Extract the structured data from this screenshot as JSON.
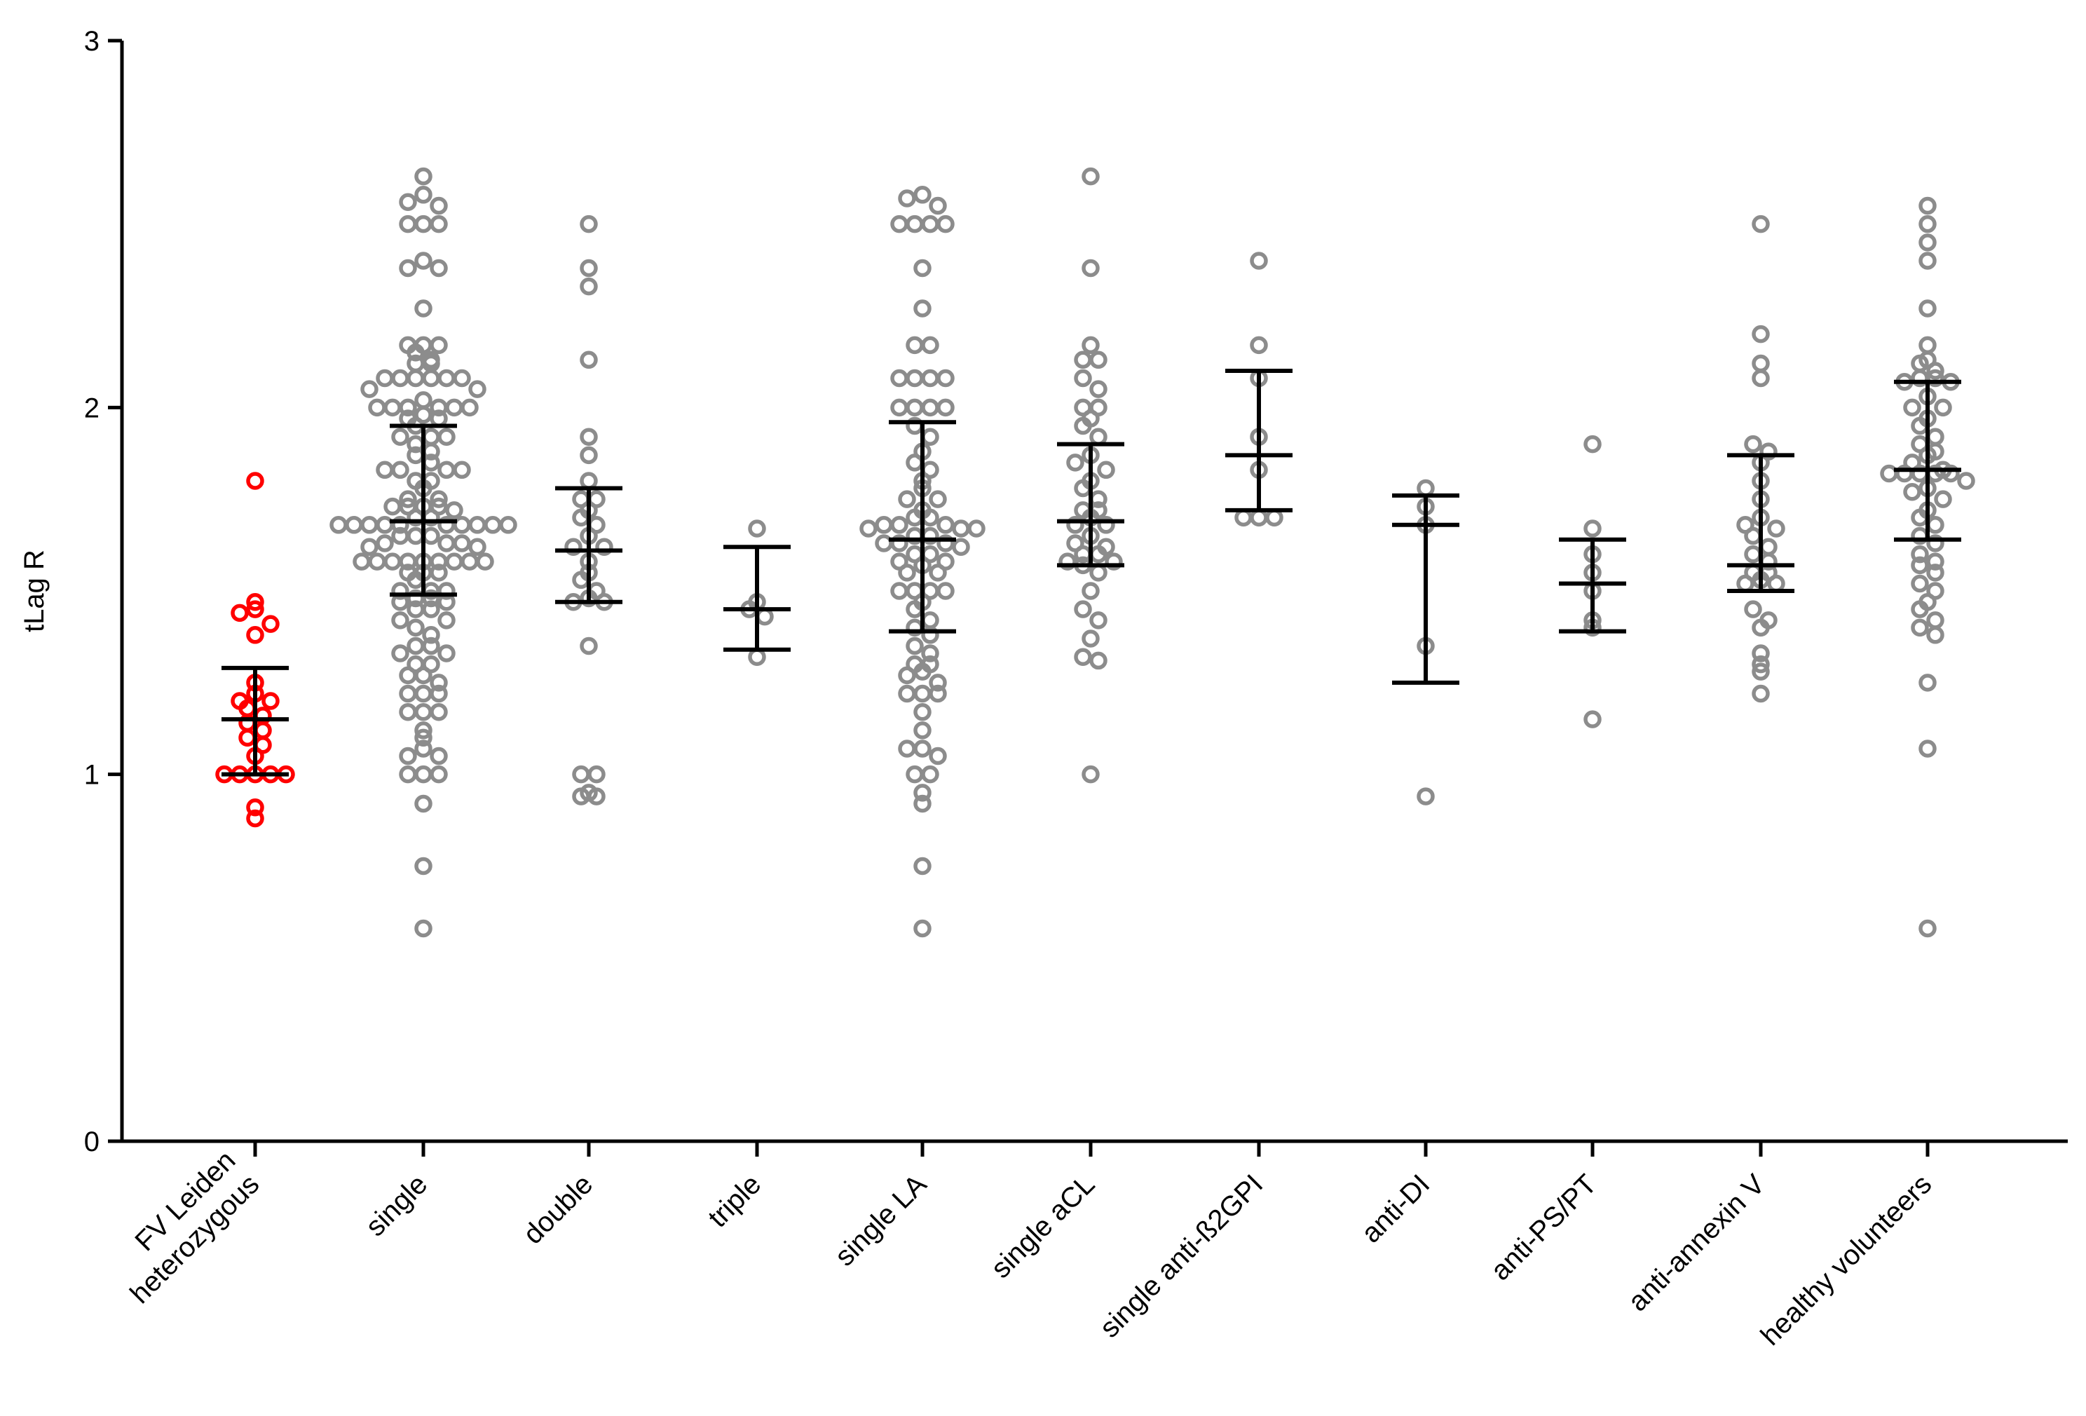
{
  "chart_data": {
    "type": "scatter",
    "subtype": "dot-plot-with-median-iqr",
    "title": "",
    "xlabel": "",
    "ylabel": "tLag R",
    "ylim": [
      0,
      3
    ],
    "yticks": [
      0,
      1,
      2,
      3
    ],
    "ytick_labels": [
      "0",
      "1",
      "2",
      "3"
    ],
    "grid": false,
    "colors": {
      "axis": "#000000",
      "highlight": "#ff0000",
      "default_points": "#8c8c8c",
      "summary": "#000000"
    },
    "categories": [
      {
        "label_lines": [
          "FV Leiden",
          "heterozygous"
        ],
        "color": "#ff0000",
        "median": 1.15,
        "q1": 1.0,
        "q3": 1.29,
        "values": [
          1.8,
          1.47,
          1.45,
          1.44,
          1.41,
          1.38,
          1.25,
          1.22,
          1.2,
          1.2,
          1.18,
          1.16,
          1.14,
          1.12,
          1.1,
          1.08,
          1.05,
          1.0,
          1.0,
          1.0,
          1.0,
          1.0,
          0.91,
          0.88
        ]
      },
      {
        "label_lines": [
          "single"
        ],
        "color": "#8c8c8c",
        "median": 1.69,
        "q1": 1.49,
        "q3": 1.95,
        "values": [
          2.63,
          2.58,
          2.56,
          2.55,
          2.5,
          2.5,
          2.5,
          2.4,
          2.38,
          2.38,
          2.27,
          2.17,
          2.17,
          2.17,
          2.15,
          2.13,
          2.12,
          2.12,
          2.08,
          2.08,
          2.08,
          2.08,
          2.08,
          2.08,
          2.05,
          2.05,
          2.02,
          2.0,
          2.0,
          2.0,
          2.0,
          2.0,
          2.0,
          1.98,
          1.97,
          1.97,
          1.95,
          1.92,
          1.92,
          1.92,
          1.9,
          1.88,
          1.87,
          1.85,
          1.83,
          1.83,
          1.83,
          1.83,
          1.8,
          1.8,
          1.78,
          1.75,
          1.75,
          1.73,
          1.73,
          1.73,
          1.73,
          1.72,
          1.7,
          1.7,
          1.68,
          1.68,
          1.68,
          1.68,
          1.68,
          1.68,
          1.68,
          1.68,
          1.68,
          1.68,
          1.65,
          1.65,
          1.65,
          1.63,
          1.63,
          1.63,
          1.62,
          1.62,
          1.58,
          1.58,
          1.58,
          1.58,
          1.58,
          1.58,
          1.58,
          1.58,
          1.58,
          1.55,
          1.55,
          1.55,
          1.53,
          1.5,
          1.5,
          1.5,
          1.48,
          1.48,
          1.47,
          1.47,
          1.45,
          1.45,
          1.42,
          1.42,
          1.4,
          1.38,
          1.35,
          1.35,
          1.33,
          1.33,
          1.3,
          1.3,
          1.27,
          1.27,
          1.25,
          1.22,
          1.22,
          1.22,
          1.17,
          1.17,
          1.17,
          1.12,
          1.1,
          1.07,
          1.05,
          1.05,
          1.0,
          1.0,
          1.0,
          0.92,
          0.75,
          0.58
        ]
      },
      {
        "label_lines": [
          "double"
        ],
        "color": "#8c8c8c",
        "median": 1.61,
        "q1": 1.47,
        "q3": 1.78,
        "values": [
          2.5,
          2.38,
          2.33,
          2.13,
          1.92,
          1.87,
          1.8,
          1.75,
          1.75,
          1.72,
          1.7,
          1.68,
          1.65,
          1.62,
          1.62,
          1.58,
          1.55,
          1.53,
          1.5,
          1.48,
          1.47,
          1.47,
          1.35,
          1.0,
          1.0,
          0.95,
          0.94,
          0.94
        ]
      },
      {
        "label_lines": [
          "triple"
        ],
        "color": "#8c8c8c",
        "median": 1.45,
        "q1": 1.34,
        "q3": 1.62,
        "values": [
          1.67,
          1.47,
          1.45,
          1.43,
          1.32
        ]
      },
      {
        "label_lines": [
          "single LA"
        ],
        "color": "#8c8c8c",
        "median": 1.64,
        "q1": 1.39,
        "q3": 1.96,
        "values": [
          2.58,
          2.57,
          2.55,
          2.5,
          2.5,
          2.5,
          2.5,
          2.38,
          2.27,
          2.17,
          2.17,
          2.08,
          2.08,
          2.08,
          2.08,
          2.0,
          2.0,
          2.0,
          2.0,
          1.95,
          1.92,
          1.88,
          1.85,
          1.83,
          1.8,
          1.78,
          1.75,
          1.75,
          1.72,
          1.7,
          1.7,
          1.68,
          1.68,
          1.68,
          1.67,
          1.67,
          1.67,
          1.65,
          1.65,
          1.63,
          1.63,
          1.63,
          1.62,
          1.6,
          1.6,
          1.58,
          1.58,
          1.57,
          1.55,
          1.55,
          1.5,
          1.5,
          1.5,
          1.5,
          1.47,
          1.45,
          1.42,
          1.4,
          1.38,
          1.35,
          1.33,
          1.3,
          1.3,
          1.28,
          1.27,
          1.25,
          1.22,
          1.22,
          1.22,
          1.17,
          1.12,
          1.07,
          1.07,
          1.05,
          1.0,
          1.0,
          0.95,
          0.92,
          0.75,
          0.58
        ]
      },
      {
        "label_lines": [
          "single aCL"
        ],
        "color": "#8c8c8c",
        "median": 1.69,
        "q1": 1.57,
        "q3": 1.9,
        "values": [
          2.63,
          2.38,
          2.17,
          2.13,
          2.13,
          2.08,
          2.05,
          2.0,
          2.0,
          1.97,
          1.95,
          1.92,
          1.87,
          1.85,
          1.83,
          1.8,
          1.78,
          1.75,
          1.72,
          1.72,
          1.7,
          1.68,
          1.68,
          1.65,
          1.63,
          1.62,
          1.6,
          1.6,
          1.58,
          1.58,
          1.57,
          1.55,
          1.5,
          1.45,
          1.42,
          1.37,
          1.32,
          1.31,
          1.0
        ]
      },
      {
        "label_lines": [
          "single anti-ß2GPI"
        ],
        "color": "#8c8c8c",
        "median": 1.87,
        "q1": 1.72,
        "q3": 2.1,
        "values": [
          2.4,
          2.17,
          2.08,
          1.92,
          1.83,
          1.7,
          1.7,
          1.7
        ]
      },
      {
        "label_lines": [
          "anti-DI"
        ],
        "color": "#8c8c8c",
        "median": 1.68,
        "q1": 1.25,
        "q3": 1.76,
        "values": [
          1.78,
          1.73,
          1.68,
          1.35,
          0.94
        ]
      },
      {
        "label_lines": [
          "anti-PS/PT"
        ],
        "color": "#8c8c8c",
        "median": 1.52,
        "q1": 1.39,
        "q3": 1.64,
        "values": [
          1.9,
          1.67,
          1.6,
          1.55,
          1.5,
          1.42,
          1.4,
          1.15
        ]
      },
      {
        "label_lines": [
          "anti-annexin V"
        ],
        "color": "#8c8c8c",
        "median": 1.57,
        "q1": 1.5,
        "q3": 1.87,
        "values": [
          2.5,
          2.2,
          2.12,
          2.08,
          1.9,
          1.88,
          1.85,
          1.8,
          1.75,
          1.7,
          1.68,
          1.67,
          1.65,
          1.62,
          1.6,
          1.58,
          1.55,
          1.55,
          1.53,
          1.52,
          1.52,
          1.45,
          1.42,
          1.4,
          1.33,
          1.3,
          1.28,
          1.22
        ]
      },
      {
        "label_lines": [
          "healthy volunteers"
        ],
        "color": "#8c8c8c",
        "median": 1.83,
        "q1": 1.64,
        "q3": 2.07,
        "values": [
          2.55,
          2.5,
          2.45,
          2.4,
          2.27,
          2.17,
          2.13,
          2.12,
          2.1,
          2.08,
          2.08,
          2.07,
          2.07,
          2.03,
          2.0,
          2.0,
          1.97,
          1.95,
          1.92,
          1.9,
          1.88,
          1.87,
          1.85,
          1.83,
          1.82,
          1.82,
          1.82,
          1.82,
          1.82,
          1.8,
          1.78,
          1.77,
          1.75,
          1.72,
          1.7,
          1.68,
          1.65,
          1.63,
          1.6,
          1.58,
          1.57,
          1.55,
          1.52,
          1.5,
          1.47,
          1.45,
          1.42,
          1.4,
          1.38,
          1.25,
          1.07,
          0.58
        ]
      }
    ]
  }
}
